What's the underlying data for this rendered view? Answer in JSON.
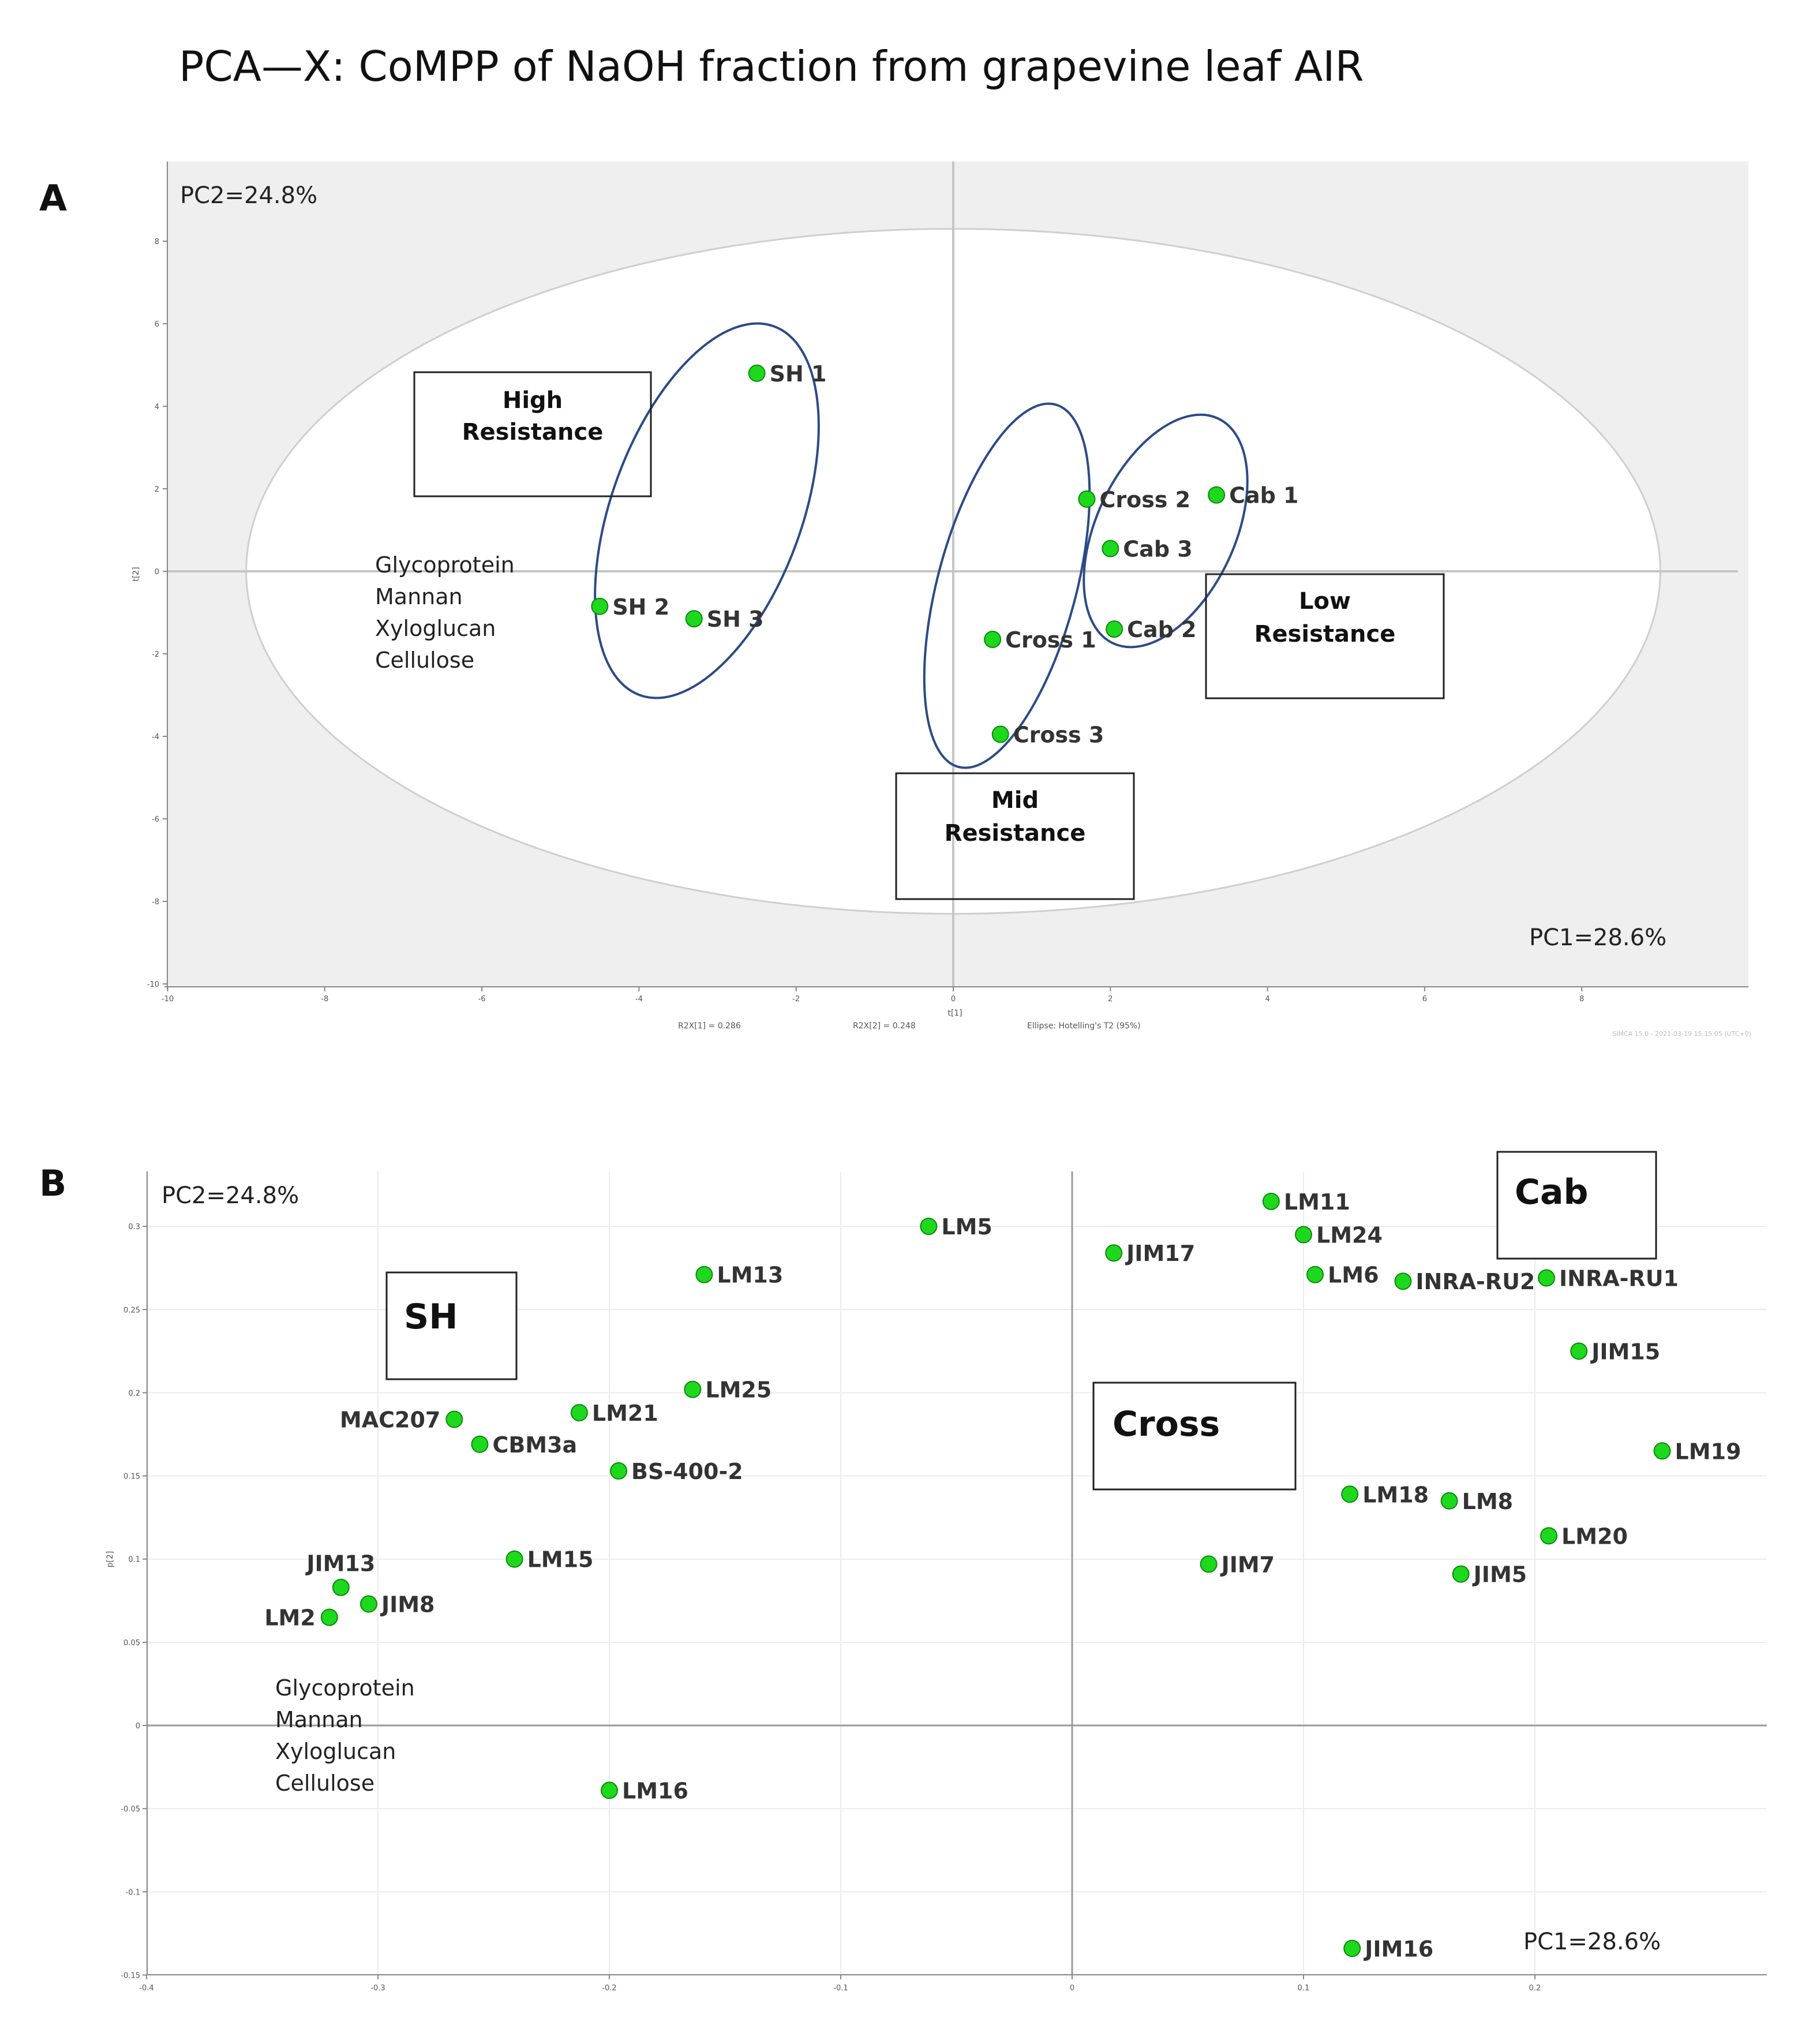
{
  "figure_title": "PCA—X: CoMPP of NaOH fraction from grapevine leaf AIR",
  "chart_data": [
    {
      "panel": "A",
      "type": "scatter",
      "title": "",
      "pc2_label": "PC2=24.8%",
      "pc1_label": "PC1=28.6%",
      "xlabel": "t[1]",
      "ylabel": "t[2]",
      "xlim": [
        -10,
        10
      ],
      "ylim": [
        -10,
        10
      ],
      "xticks": [
        -10,
        -8,
        -6,
        -4,
        -2,
        0,
        2,
        4,
        6,
        8
      ],
      "yticks": [
        -10,
        -8,
        -6,
        -4,
        -2,
        0,
        2,
        4,
        6,
        8
      ],
      "footer": [
        "R2X[1] = 0.286",
        "R2X[2] = 0.248",
        "Ellipse: Hotelling's T2 (95%)"
      ],
      "watermark": "SIMCA 15.0 - 2021-03-19 15:15:05 (UTC+0)",
      "hotelling_ellipse": {
        "x_semi": 9.0,
        "y_semi": 8.3
      },
      "points": [
        {
          "label": "SH 1",
          "x": -2.5,
          "y": 4.8
        },
        {
          "label": "SH 2",
          "x": -4.5,
          "y": -0.85
        },
        {
          "label": "SH 3",
          "x": -3.3,
          "y": -1.15
        },
        {
          "label": "Cross 1",
          "x": 0.5,
          "y": -1.65
        },
        {
          "label": "Cross 2",
          "x": 1.7,
          "y": 1.75
        },
        {
          "label": "Cross 3",
          "x": 0.6,
          "y": -3.95
        },
        {
          "label": "Cab 1",
          "x": 3.35,
          "y": 1.85
        },
        {
          "label": "Cab 2",
          "x": 2.05,
          "y": -1.4
        },
        {
          "label": "Cab 3",
          "x": 2.0,
          "y": 0.55
        }
      ],
      "boxes": [
        {
          "lines": [
            "High",
            "Resistance"
          ]
        },
        {
          "lines": [
            "Low",
            "Resistance"
          ]
        },
        {
          "lines": [
            "Mid",
            "Resistance"
          ]
        }
      ],
      "annotation": [
        "Glycoprotein",
        "Mannan",
        "Xyloglucan",
        "Cellulose"
      ]
    },
    {
      "panel": "B",
      "type": "scatter",
      "title": "",
      "pc2_label": "PC2=24.8%",
      "pc1_label": "PC1=28.6%",
      "xlabel": "",
      "ylabel": "p[2]",
      "xlim": [
        -0.4,
        0.3
      ],
      "ylim": [
        -0.15,
        0.33
      ],
      "xticks": [
        -0.4,
        -0.3,
        -0.2,
        -0.1,
        0,
        0.1,
        0.2
      ],
      "xtick_labels": [
        "-0.4",
        "-0.3",
        "-0.2",
        "-0.1",
        "0",
        "0.1",
        "0.2"
      ],
      "yticks": [
        -0.15,
        -0.1,
        -0.05,
        0,
        0.05,
        0.1,
        0.15,
        0.2,
        0.25,
        0.3
      ],
      "ytick_labels": [
        "-0.15",
        "-0.1",
        "-0.05",
        "0",
        "0.05",
        "0.1",
        "0.15",
        "0.2",
        "0.25",
        "0.3"
      ],
      "points": [
        {
          "label": "LM5",
          "x": -0.062,
          "y": 0.3
        },
        {
          "label": "LM13",
          "x": -0.159,
          "y": 0.271
        },
        {
          "label": "LM25",
          "x": -0.164,
          "y": 0.202
        },
        {
          "label": "LM21",
          "x": -0.213,
          "y": 0.188
        },
        {
          "label": "MAC207",
          "x": -0.267,
          "y": 0.184
        },
        {
          "label": "CBM3a",
          "x": -0.256,
          "y": 0.169
        },
        {
          "label": "BS-400-2",
          "x": -0.196,
          "y": 0.153
        },
        {
          "label": "LM15",
          "x": -0.241,
          "y": 0.1
        },
        {
          "label": "JIM13",
          "x": -0.316,
          "y": 0.083
        },
        {
          "label": "JIM8",
          "x": -0.304,
          "y": 0.073
        },
        {
          "label": "LM2",
          "x": -0.321,
          "y": 0.065
        },
        {
          "label": "LM16",
          "x": -0.2,
          "y": -0.039
        },
        {
          "label": "JIM17",
          "x": 0.018,
          "y": 0.284
        },
        {
          "label": "LM11",
          "x": 0.086,
          "y": 0.315
        },
        {
          "label": "LM24",
          "x": 0.1,
          "y": 0.295
        },
        {
          "label": "LM6",
          "x": 0.105,
          "y": 0.271
        },
        {
          "label": "INRA-RU2",
          "x": 0.143,
          "y": 0.267
        },
        {
          "label": "INRA-RU1",
          "x": 0.205,
          "y": 0.269
        },
        {
          "label": "JIM15",
          "x": 0.219,
          "y": 0.225
        },
        {
          "label": "LM19",
          "x": 0.255,
          "y": 0.165
        },
        {
          "label": "LM18",
          "x": 0.12,
          "y": 0.139
        },
        {
          "label": "LM8",
          "x": 0.163,
          "y": 0.135
        },
        {
          "label": "LM20",
          "x": 0.206,
          "y": 0.114
        },
        {
          "label": "JIM7",
          "x": 0.059,
          "y": 0.097
        },
        {
          "label": "JIM5",
          "x": 0.168,
          "y": 0.091
        },
        {
          "label": "JIM16",
          "x": 0.121,
          "y": -0.134
        }
      ],
      "boxes": [
        {
          "label": "SH"
        },
        {
          "label": "Cross"
        },
        {
          "label": "Cab"
        }
      ],
      "annotation": [
        "Glycoprotein",
        "Mannan",
        "Xyloglucan",
        "Cellulose"
      ]
    }
  ],
  "panel_letters": [
    "A",
    "B"
  ],
  "colors": {
    "point_fill": "#1ed81e",
    "point_stroke": "#0a8a0a",
    "group_ellipse": "#2b4b86",
    "plot_bg_gray": "#efefef",
    "axis_line": "#bdbdbd"
  }
}
